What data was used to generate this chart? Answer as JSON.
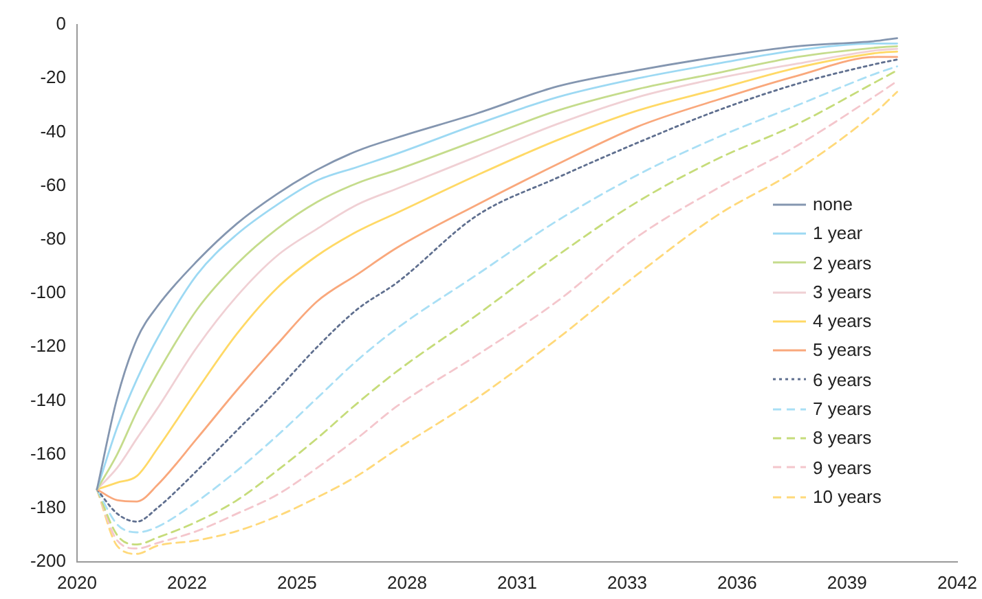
{
  "chart_data": {
    "type": "line",
    "x": [
      "2020-07",
      "2021-01",
      "2021-07",
      "2022-01",
      "2023-01",
      "2024-01",
      "2025-01",
      "2026-01",
      "2027-01",
      "2028-01",
      "2030-01",
      "2032-01",
      "2034-01",
      "2036-01",
      "2038-01",
      "2040-01",
      "2040-07"
    ],
    "xlim": [
      "2020-01-01",
      "2042-01-01"
    ],
    "xticks": [
      {
        "value": "2020-01-01",
        "label": "2020"
      },
      {
        "value": "2022-10-01",
        "label": "2022"
      },
      {
        "value": "2025-07-01",
        "label": "2025"
      },
      {
        "value": "2028-04-01",
        "label": "2028"
      },
      {
        "value": "2031-01-01",
        "label": "2031"
      },
      {
        "value": "2033-10-01",
        "label": "2033"
      },
      {
        "value": "2036-07-01",
        "label": "2036"
      },
      {
        "value": "2039-04-01",
        "label": "2039"
      },
      {
        "value": "2042-01-01",
        "label": "2042"
      }
    ],
    "ylim": [
      -200,
      0
    ],
    "yticks": [
      -200,
      -180,
      -160,
      -140,
      -120,
      -100,
      -80,
      -60,
      -40,
      -20,
      0
    ],
    "grid": false,
    "legend": "right",
    "marker": "none",
    "series": [
      {
        "name": "none",
        "color": "#8496b0",
        "line_style": "solid",
        "values": [
          -173,
          -139,
          -117,
          -105,
          -88,
          -74,
          -63,
          -54,
          -47,
          -42,
          -33,
          -23,
          -17,
          -12,
          -8,
          -6,
          -5
        ]
      },
      {
        "name": "1 year",
        "color": "#9dd9f3",
        "line_style": "solid",
        "values": [
          -173,
          -150,
          -132,
          -117,
          -93,
          -78,
          -67,
          -58,
          -53,
          -48,
          -37,
          -27,
          -20,
          -14.5,
          -9.5,
          -7,
          -7
        ]
      },
      {
        "name": "2 years",
        "color": "#c5dc8c",
        "line_style": "solid",
        "values": [
          -173,
          -160,
          -144,
          -130,
          -106,
          -89,
          -76,
          -66,
          -59,
          -54,
          -43,
          -32,
          -24,
          -18,
          -12,
          -8.5,
          -8
        ]
      },
      {
        "name": "3 years",
        "color": "#f0d0d4",
        "line_style": "solid",
        "values": [
          -173,
          -165,
          -154,
          -143,
          -120,
          -101,
          -86,
          -76,
          -67,
          -61,
          -49,
          -37,
          -27,
          -20,
          -14.5,
          -9.5,
          -9
        ]
      },
      {
        "name": "4 years",
        "color": "#ffd966",
        "line_style": "solid",
        "values": [
          -173,
          -170.5,
          -168,
          -158,
          -136,
          -115,
          -98,
          -86,
          -77,
          -70,
          -56,
          -43,
          -32,
          -24,
          -16,
          -10.5,
          -10
        ]
      },
      {
        "name": "5 years",
        "color": "#f9a87c",
        "line_style": "solid",
        "values": [
          -173,
          -177,
          -177.5,
          -171.5,
          -154,
          -136,
          -119,
          -103,
          -93,
          -83,
          -67,
          -52,
          -38,
          -28,
          -19,
          -12,
          -12
        ]
      },
      {
        "name": "6 years",
        "color": "#5f6f8f",
        "line_style": "dotted",
        "values": [
          -173,
          -182,
          -185,
          -180,
          -166,
          -151,
          -136,
          -120,
          -106,
          -96,
          -71,
          -57,
          -44,
          -32,
          -22,
          -14.5,
          -13
        ]
      },
      {
        "name": "7 years",
        "color": "#a9dff5",
        "line_style": "dashed",
        "values": [
          -173,
          -186,
          -189,
          -187,
          -177.5,
          -166,
          -153,
          -139,
          -125,
          -113,
          -93,
          -73,
          -56,
          -42,
          -30,
          -18,
          -15.5
        ]
      },
      {
        "name": "8 years",
        "color": "#c6dc7a",
        "line_style": "dashed",
        "values": [
          -173,
          -190,
          -193.5,
          -191,
          -185,
          -177,
          -166,
          -154,
          -141,
          -129,
          -108,
          -86,
          -66,
          -50,
          -37,
          -21,
          -17
        ]
      },
      {
        "name": "9 years",
        "color": "#f4c6cc",
        "line_style": "dashed",
        "values": [
          -173,
          -192,
          -195,
          -193,
          -188.5,
          -182,
          -175,
          -165,
          -154,
          -142,
          -123,
          -103,
          -79,
          -61,
          -45,
          -26,
          -21
        ]
      },
      {
        "name": "10 years",
        "color": "#ffd97a",
        "line_style": "dashed",
        "values": [
          -173,
          -194,
          -197,
          -194,
          -192,
          -188.5,
          -183,
          -176,
          -168,
          -158,
          -139,
          -117,
          -93,
          -71,
          -54,
          -32,
          -25
        ]
      }
    ]
  }
}
